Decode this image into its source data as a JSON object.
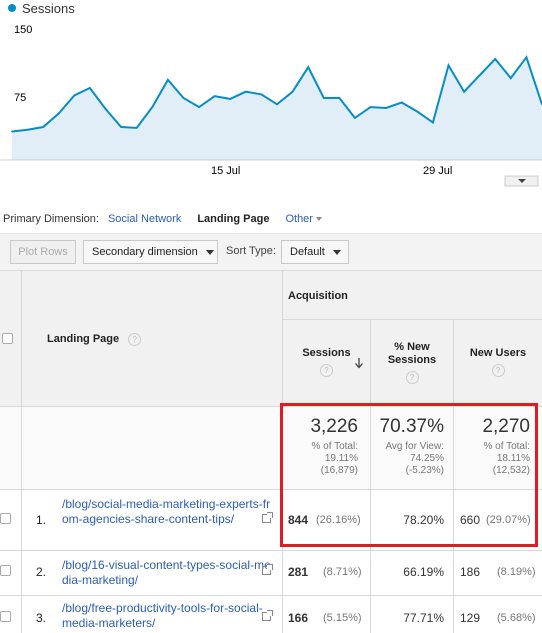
{
  "legend": {
    "label": "Sessions",
    "color": "#058dc7"
  },
  "chart_data": {
    "type": "area",
    "y_ticks": [
      "150",
      "75"
    ],
    "x_ticks": [
      "15 Jul",
      "29 Jul"
    ],
    "ylim": [
      0,
      150
    ],
    "series": [
      {
        "values": [
          38,
          40,
          43,
          58,
          78,
          86,
          63,
          43,
          42,
          65,
          95,
          75,
          65,
          77,
          74,
          82,
          79,
          68,
          82,
          109,
          75,
          75,
          53,
          65,
          64,
          70,
          60,
          48,
          111,
          82,
          100,
          118,
          97,
          120,
          68
        ]
      }
    ],
    "line_color": "#058dc7",
    "fill_color": "#e1eef7",
    "grid": false
  },
  "primary_dimension": {
    "label": "Primary Dimension:",
    "options": [
      {
        "label": "Social Network",
        "active": false
      },
      {
        "label": "Landing Page",
        "active": true
      }
    ],
    "other": "Other"
  },
  "toolbar": {
    "plot_rows": "Plot Rows",
    "secondary": "Secondary dimension",
    "sort_label": "Sort Type:",
    "sort_value": "Default"
  },
  "table": {
    "col_landing": "Landing Page",
    "group": "Acquisition",
    "col_sessions": "Sessions",
    "col_new_sessions_1": "% New",
    "col_new_sessions_2": "Sessions",
    "col_new_users": "New Users",
    "help_glyph": "?",
    "totals": {
      "sessions": {
        "value": "3,226",
        "l1": "% of Total:",
        "l2": "19.11%",
        "l3": "(16,879)"
      },
      "new_sessions": {
        "value": "70.37%",
        "l1": "Avg for View:",
        "l2": "74.25%",
        "l3": "(-5.23%)"
      },
      "new_users": {
        "value": "2,270",
        "l1": "% of Total:",
        "l2": "18.11%",
        "l3": "(12,532)"
      }
    },
    "rows": [
      {
        "index": "1.",
        "page": "/blog/social-media-marketing-experts-from-agencies-share-content-tips/",
        "sessions": "844",
        "sessions_pct": "(26.16%)",
        "new_sessions": "78.20%",
        "new_users": "660",
        "new_users_pct": "(29.07%)"
      },
      {
        "index": "2.",
        "page": "/blog/16-visual-content-types-social-media-marketing/",
        "sessions": "281",
        "sessions_pct": "(8.71%)",
        "new_sessions": "66.19%",
        "new_users": "186",
        "new_users_pct": "(8.19%)"
      },
      {
        "index": "3.",
        "page": "/blog/free-productivity-tools-for-social-media-marketers/",
        "sessions": "166",
        "sessions_pct": "(5.15%)",
        "new_sessions": "77.71%",
        "new_users": "129",
        "new_users_pct": "(5.68%)"
      }
    ]
  },
  "highlight_color": "#e01b24"
}
